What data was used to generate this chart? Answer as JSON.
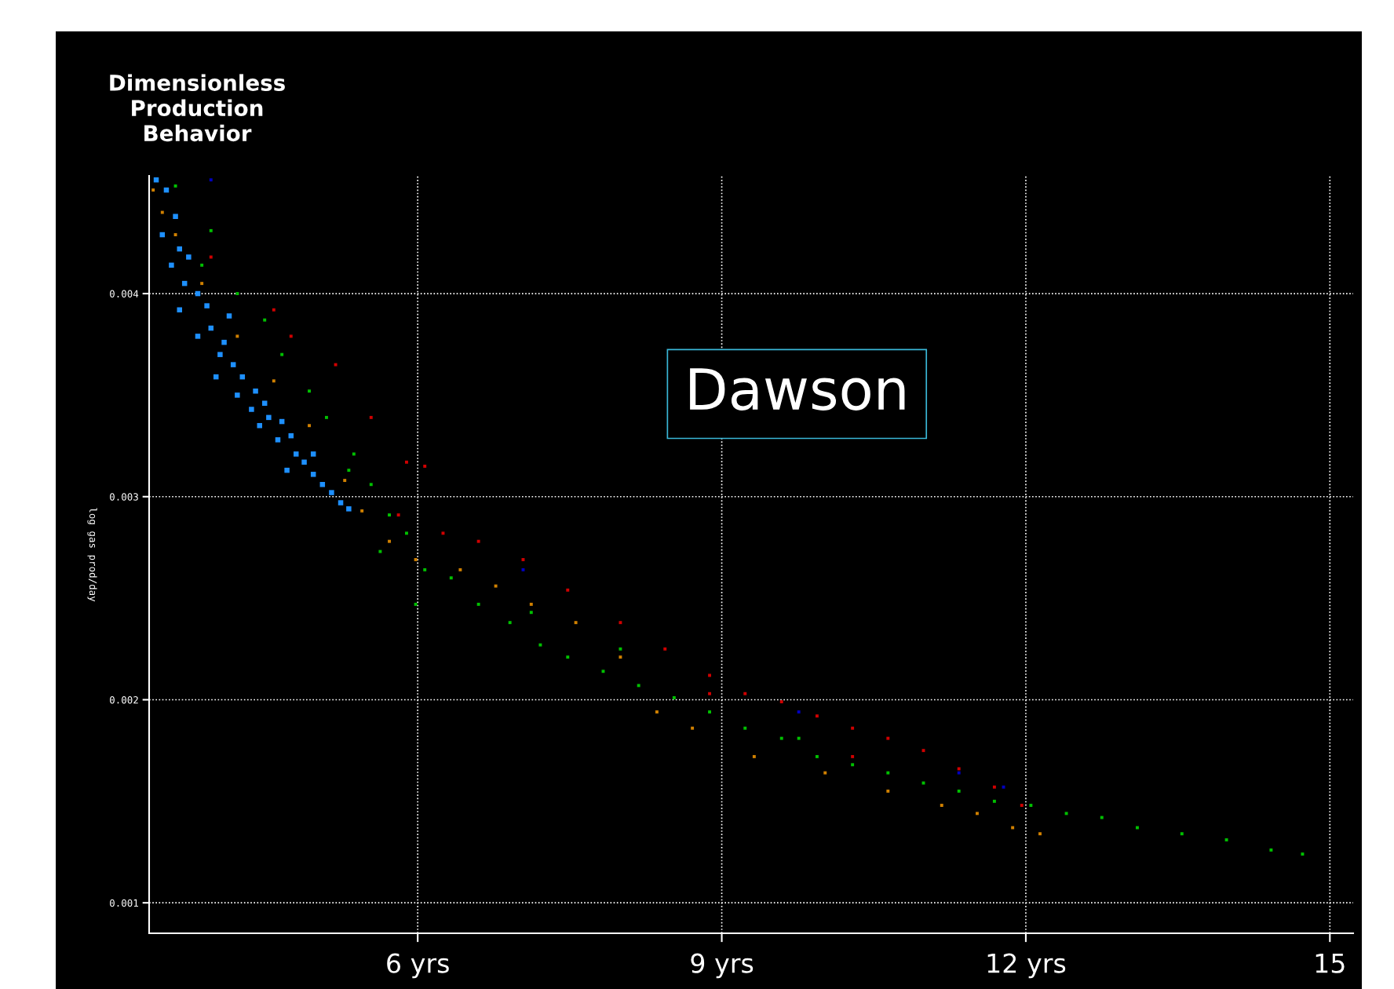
{
  "chart_data": {
    "type": "scatter",
    "title": "Dimensionless Production Behavior",
    "ylabel": "log gas prod/day",
    "annotations": [
      "Dawson"
    ],
    "xlim": [
      3.35,
      15.23
    ],
    "ylim": [
      0.00085,
      0.00458
    ],
    "xticks": [
      {
        "value": 6,
        "label": "6 yrs"
      },
      {
        "value": 9,
        "label": "9 yrs"
      },
      {
        "value": 12,
        "label": "12 yrs"
      },
      {
        "value": 15,
        "label": "15"
      }
    ],
    "yticks": [
      0.001,
      0.002,
      0.003,
      0.004
    ],
    "grid": true,
    "marker": "square",
    "series": [
      {
        "color": "#00c000",
        "x": [
          3.61,
          3.96,
          3.87,
          4.22,
          4.49,
          4.66,
          4.93,
          5.1,
          5.37,
          5.54,
          5.32,
          5.72,
          5.89,
          6.07,
          5.98,
          6.33,
          6.6,
          6.91,
          7.21,
          7.48,
          7.83,
          8.18,
          8.53,
          8.88,
          9.23,
          9.59,
          9.94,
          10.29,
          10.64,
          10.99,
          11.34,
          11.69,
          12.05,
          12.4,
          12.75,
          13.1,
          13.54,
          13.98,
          14.42,
          14.73,
          5.63,
          7.12,
          8.0,
          9.76
        ],
        "values": [
          0.00453,
          0.00431,
          0.00414,
          0.004,
          0.00387,
          0.0037,
          0.00352,
          0.00339,
          0.00321,
          0.00306,
          0.00313,
          0.00291,
          0.00282,
          0.00264,
          0.00247,
          0.0026,
          0.00247,
          0.00238,
          0.00227,
          0.00221,
          0.00214,
          0.00207,
          0.00201,
          0.00194,
          0.00186,
          0.00181,
          0.00172,
          0.00168,
          0.00164,
          0.00159,
          0.00155,
          0.0015,
          0.00148,
          0.00144,
          0.00142,
          0.00137,
          0.00134,
          0.00131,
          0.00126,
          0.00124,
          0.00273,
          0.00243,
          0.00225,
          0.00181
        ]
      },
      {
        "color": "#d00000",
        "x": [
          3.96,
          4.58,
          4.75,
          5.19,
          5.54,
          5.89,
          6.07,
          5.81,
          6.25,
          6.6,
          7.04,
          7.48,
          8.0,
          8.44,
          8.88,
          9.23,
          9.59,
          9.94,
          10.29,
          10.64,
          10.99,
          11.34,
          11.69,
          11.96,
          8.88,
          10.29
        ],
        "values": [
          0.00418,
          0.00392,
          0.00379,
          0.00365,
          0.00339,
          0.00317,
          0.00315,
          0.00291,
          0.00282,
          0.00278,
          0.00269,
          0.00254,
          0.00238,
          0.00225,
          0.00212,
          0.00203,
          0.00199,
          0.00192,
          0.00186,
          0.00181,
          0.00175,
          0.00166,
          0.00157,
          0.00148,
          0.00203,
          0.00172
        ]
      },
      {
        "color": "#d08000",
        "x": [
          3.39,
          3.48,
          3.61,
          3.87,
          4.22,
          4.58,
          4.93,
          5.28,
          5.45,
          5.72,
          5.98,
          6.42,
          6.77,
          7.12,
          7.56,
          8.0,
          8.36,
          8.71,
          9.32,
          10.02,
          10.64,
          11.17,
          11.52,
          11.87,
          12.14
        ],
        "values": [
          0.00451,
          0.0044,
          0.00429,
          0.00405,
          0.00379,
          0.00357,
          0.00335,
          0.00308,
          0.00293,
          0.00278,
          0.00269,
          0.00264,
          0.00256,
          0.00247,
          0.00238,
          0.00221,
          0.00194,
          0.00186,
          0.00172,
          0.00164,
          0.00155,
          0.00148,
          0.00144,
          0.00137,
          0.00134
        ]
      },
      {
        "color": "#0000c0",
        "x": [
          11.34,
          9.76,
          7.04,
          11.78,
          3.96
        ],
        "values": [
          0.00164,
          0.00194,
          0.00264,
          0.00157,
          0.00456
        ]
      },
      {
        "color": "#1e90ff",
        "x": [
          3.42,
          3.52,
          3.61,
          3.48,
          3.65,
          3.57,
          3.74,
          3.7,
          3.83,
          3.65,
          3.92,
          3.96,
          3.83,
          4.09,
          4.05,
          4.18,
          4.01,
          4.27,
          4.22,
          4.4,
          4.36,
          4.49,
          4.53,
          4.44,
          4.66,
          4.62,
          4.75,
          4.8,
          4.88,
          4.71,
          4.97,
          5.06,
          5.15,
          5.24,
          5.32,
          4.97,
          4.14
        ],
        "values": [
          0.00456,
          0.00451,
          0.00438,
          0.00429,
          0.00422,
          0.00414,
          0.00418,
          0.00405,
          0.004,
          0.00392,
          0.00394,
          0.00383,
          0.00379,
          0.00376,
          0.0037,
          0.00365,
          0.00359,
          0.00359,
          0.0035,
          0.00352,
          0.00343,
          0.00346,
          0.00339,
          0.00335,
          0.00337,
          0.00328,
          0.0033,
          0.00321,
          0.00317,
          0.00313,
          0.00311,
          0.00306,
          0.00302,
          0.00297,
          0.00294,
          0.00321,
          0.00389
        ]
      }
    ]
  }
}
